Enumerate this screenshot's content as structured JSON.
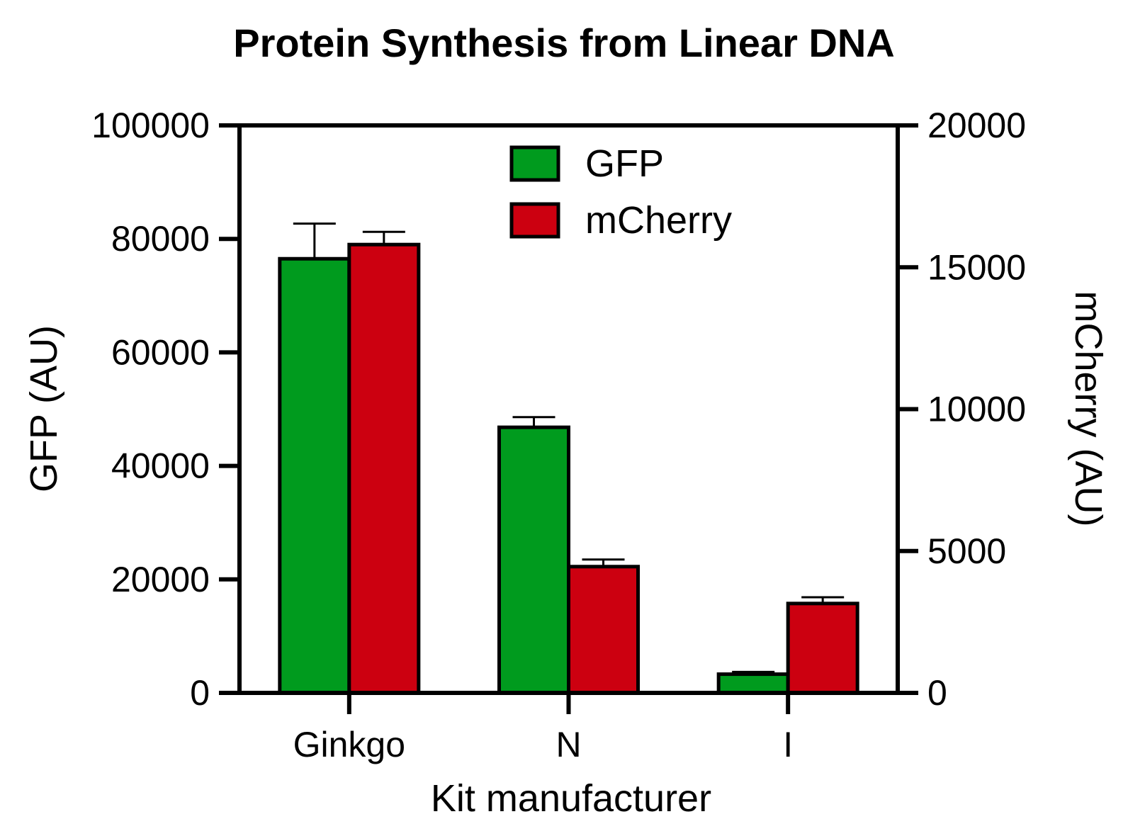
{
  "chart_data": {
    "type": "bar",
    "title": "Protein Synthesis from Linear DNA",
    "xlabel": "Kit manufacturer",
    "ylabel": "GFP (AU)",
    "y2label": "mCherry (AU)",
    "categories": [
      "Ginkgo",
      "N",
      "I"
    ],
    "ylim": [
      0,
      100000
    ],
    "y2lim": [
      0,
      20000
    ],
    "yticks": [
      0,
      20000,
      40000,
      60000,
      80000,
      100000
    ],
    "y2ticks": [
      0,
      5000,
      10000,
      15000,
      20000
    ],
    "series": [
      {
        "name": "GFP",
        "axis": "left",
        "color": "#009B1E",
        "values": [
          76500,
          46800,
          3300
        ],
        "errors": [
          6200,
          1800,
          400
        ]
      },
      {
        "name": "mCherry",
        "axis": "right",
        "color": "#CC0010",
        "values": [
          15800,
          4450,
          3150
        ],
        "errors": [
          450,
          250,
          220
        ]
      }
    ],
    "legend_position": "top-center",
    "grid": false,
    "error_bars": true
  }
}
